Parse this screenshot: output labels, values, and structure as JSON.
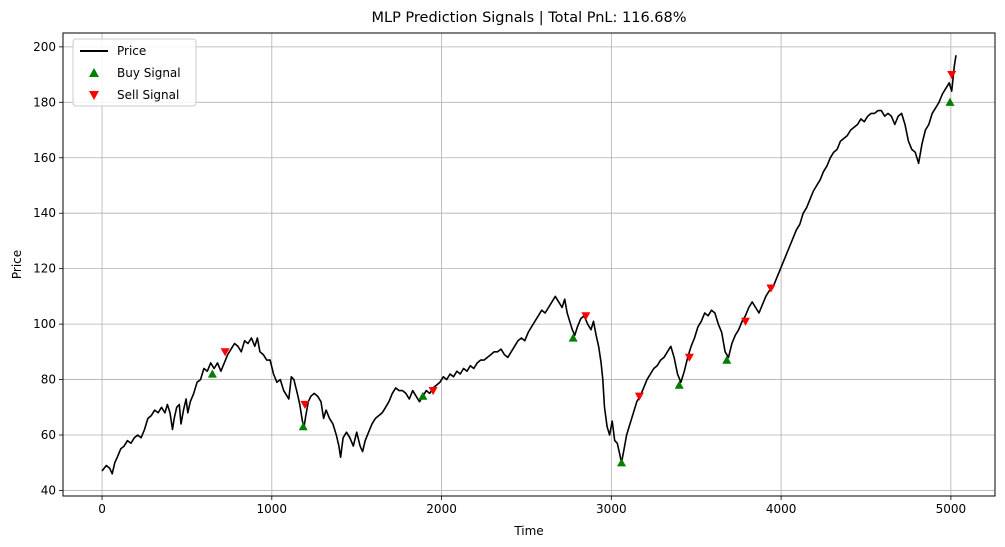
{
  "chart_data": {
    "type": "line",
    "title": "MLP Prediction Signals | Total PnL: 116.68%",
    "xlabel": "Time",
    "ylabel": "Price",
    "xlim": [
      -230,
      5260
    ],
    "ylim": [
      38,
      205
    ],
    "x_ticks": [
      0,
      1000,
      2000,
      3000,
      4000,
      5000
    ],
    "y_ticks": [
      40,
      60,
      80,
      100,
      120,
      140,
      160,
      180,
      200
    ],
    "grid": true,
    "legend_position": "top-left",
    "series": [
      {
        "name": "Price",
        "kind": "line",
        "color": "#000000",
        "points": [
          [
            0,
            47
          ],
          [
            25,
            49
          ],
          [
            45,
            48
          ],
          [
            60,
            46
          ],
          [
            75,
            50
          ],
          [
            90,
            52
          ],
          [
            110,
            55
          ],
          [
            130,
            56
          ],
          [
            150,
            58
          ],
          [
            170,
            57
          ],
          [
            190,
            59
          ],
          [
            210,
            60
          ],
          [
            230,
            59
          ],
          [
            250,
            62
          ],
          [
            270,
            66
          ],
          [
            290,
            67
          ],
          [
            310,
            69
          ],
          [
            330,
            68
          ],
          [
            350,
            70
          ],
          [
            370,
            68
          ],
          [
            385,
            71
          ],
          [
            400,
            68
          ],
          [
            415,
            62
          ],
          [
            425,
            66
          ],
          [
            440,
            70
          ],
          [
            455,
            71
          ],
          [
            465,
            64
          ],
          [
            480,
            69
          ],
          [
            495,
            73
          ],
          [
            505,
            68
          ],
          [
            520,
            72
          ],
          [
            540,
            75
          ],
          [
            560,
            79
          ],
          [
            580,
            80
          ],
          [
            600,
            84
          ],
          [
            620,
            83
          ],
          [
            640,
            86
          ],
          [
            660,
            84
          ],
          [
            680,
            86
          ],
          [
            700,
            83
          ],
          [
            720,
            86
          ],
          [
            740,
            89
          ],
          [
            760,
            91
          ],
          [
            780,
            93
          ],
          [
            800,
            92
          ],
          [
            820,
            90
          ],
          [
            840,
            94
          ],
          [
            860,
            93
          ],
          [
            880,
            95
          ],
          [
            900,
            92
          ],
          [
            915,
            95
          ],
          [
            930,
            90
          ],
          [
            950,
            89
          ],
          [
            970,
            87
          ],
          [
            990,
            87
          ],
          [
            1010,
            82
          ],
          [
            1030,
            79
          ],
          [
            1050,
            80
          ],
          [
            1070,
            76
          ],
          [
            1090,
            74
          ],
          [
            1100,
            73
          ],
          [
            1115,
            81
          ],
          [
            1130,
            80
          ],
          [
            1150,
            75
          ],
          [
            1165,
            71
          ],
          [
            1180,
            65
          ],
          [
            1190,
            63
          ],
          [
            1200,
            67
          ],
          [
            1215,
            72
          ],
          [
            1230,
            74
          ],
          [
            1250,
            75
          ],
          [
            1270,
            74
          ],
          [
            1290,
            72
          ],
          [
            1305,
            66
          ],
          [
            1320,
            69
          ],
          [
            1340,
            66
          ],
          [
            1360,
            64
          ],
          [
            1380,
            60
          ],
          [
            1395,
            56
          ],
          [
            1405,
            52
          ],
          [
            1420,
            59
          ],
          [
            1440,
            61
          ],
          [
            1460,
            59
          ],
          [
            1480,
            56
          ],
          [
            1500,
            61
          ],
          [
            1520,
            56
          ],
          [
            1535,
            54
          ],
          [
            1550,
            58
          ],
          [
            1570,
            61
          ],
          [
            1590,
            64
          ],
          [
            1610,
            66
          ],
          [
            1630,
            67
          ],
          [
            1650,
            68
          ],
          [
            1670,
            70
          ],
          [
            1690,
            72
          ],
          [
            1710,
            75
          ],
          [
            1730,
            77
          ],
          [
            1750,
            76
          ],
          [
            1770,
            76
          ],
          [
            1790,
            75
          ],
          [
            1810,
            73
          ],
          [
            1830,
            76
          ],
          [
            1850,
            74
          ],
          [
            1870,
            72
          ],
          [
            1890,
            74
          ],
          [
            1910,
            76
          ],
          [
            1930,
            75
          ],
          [
            1950,
            77
          ],
          [
            1970,
            78
          ],
          [
            1990,
            79
          ],
          [
            2010,
            81
          ],
          [
            2030,
            80
          ],
          [
            2050,
            82
          ],
          [
            2070,
            81
          ],
          [
            2090,
            83
          ],
          [
            2110,
            82
          ],
          [
            2130,
            84
          ],
          [
            2150,
            83
          ],
          [
            2170,
            85
          ],
          [
            2190,
            84
          ],
          [
            2210,
            86
          ],
          [
            2230,
            87
          ],
          [
            2250,
            87
          ],
          [
            2270,
            88
          ],
          [
            2290,
            89
          ],
          [
            2310,
            90
          ],
          [
            2330,
            90
          ],
          [
            2350,
            91
          ],
          [
            2370,
            89
          ],
          [
            2390,
            88
          ],
          [
            2410,
            90
          ],
          [
            2430,
            92
          ],
          [
            2450,
            94
          ],
          [
            2470,
            95
          ],
          [
            2490,
            94
          ],
          [
            2510,
            97
          ],
          [
            2530,
            99
          ],
          [
            2550,
            101
          ],
          [
            2570,
            103
          ],
          [
            2590,
            105
          ],
          [
            2610,
            104
          ],
          [
            2630,
            106
          ],
          [
            2650,
            108
          ],
          [
            2670,
            110
          ],
          [
            2690,
            108
          ],
          [
            2710,
            106
          ],
          [
            2725,
            109
          ],
          [
            2740,
            104
          ],
          [
            2755,
            101
          ],
          [
            2770,
            98
          ],
          [
            2785,
            96
          ],
          [
            2800,
            99
          ],
          [
            2820,
            102
          ],
          [
            2840,
            103
          ],
          [
            2860,
            100
          ],
          [
            2880,
            98
          ],
          [
            2895,
            101
          ],
          [
            2910,
            96
          ],
          [
            2925,
            92
          ],
          [
            2940,
            86
          ],
          [
            2950,
            80
          ],
          [
            2960,
            70
          ],
          [
            2975,
            63
          ],
          [
            2990,
            60
          ],
          [
            3005,
            65
          ],
          [
            3020,
            58
          ],
          [
            3035,
            57
          ],
          [
            3050,
            53
          ],
          [
            3060,
            50
          ],
          [
            3075,
            55
          ],
          [
            3090,
            60
          ],
          [
            3110,
            64
          ],
          [
            3130,
            68
          ],
          [
            3150,
            72
          ],
          [
            3170,
            74
          ],
          [
            3190,
            77
          ],
          [
            3210,
            80
          ],
          [
            3230,
            82
          ],
          [
            3250,
            84
          ],
          [
            3270,
            85
          ],
          [
            3290,
            87
          ],
          [
            3310,
            88
          ],
          [
            3330,
            90
          ],
          [
            3350,
            92
          ],
          [
            3370,
            88
          ],
          [
            3390,
            82
          ],
          [
            3410,
            79
          ],
          [
            3430,
            83
          ],
          [
            3450,
            88
          ],
          [
            3470,
            92
          ],
          [
            3490,
            95
          ],
          [
            3510,
            99
          ],
          [
            3530,
            101
          ],
          [
            3550,
            104
          ],
          [
            3570,
            103
          ],
          [
            3590,
            105
          ],
          [
            3610,
            104
          ],
          [
            3630,
            100
          ],
          [
            3650,
            97
          ],
          [
            3670,
            90
          ],
          [
            3690,
            88
          ],
          [
            3710,
            93
          ],
          [
            3730,
            96
          ],
          [
            3750,
            98
          ],
          [
            3770,
            101
          ],
          [
            3790,
            103
          ],
          [
            3810,
            106
          ],
          [
            3830,
            108
          ],
          [
            3850,
            106
          ],
          [
            3870,
            104
          ],
          [
            3890,
            107
          ],
          [
            3910,
            110
          ],
          [
            3930,
            112
          ],
          [
            3950,
            113
          ],
          [
            3970,
            116
          ],
          [
            3990,
            119
          ],
          [
            4010,
            122
          ],
          [
            4030,
            125
          ],
          [
            4050,
            128
          ],
          [
            4070,
            131
          ],
          [
            4090,
            134
          ],
          [
            4110,
            136
          ],
          [
            4130,
            140
          ],
          [
            4150,
            142
          ],
          [
            4170,
            145
          ],
          [
            4190,
            148
          ],
          [
            4210,
            150
          ],
          [
            4230,
            152
          ],
          [
            4250,
            155
          ],
          [
            4270,
            157
          ],
          [
            4290,
            160
          ],
          [
            4310,
            162
          ],
          [
            4330,
            163
          ],
          [
            4350,
            166
          ],
          [
            4370,
            167
          ],
          [
            4390,
            168
          ],
          [
            4410,
            170
          ],
          [
            4430,
            171
          ],
          [
            4450,
            172
          ],
          [
            4470,
            174
          ],
          [
            4490,
            173
          ],
          [
            4510,
            175
          ],
          [
            4530,
            176
          ],
          [
            4550,
            176
          ],
          [
            4570,
            177
          ],
          [
            4590,
            177
          ],
          [
            4610,
            175
          ],
          [
            4630,
            176
          ],
          [
            4650,
            175
          ],
          [
            4670,
            172
          ],
          [
            4690,
            175
          ],
          [
            4710,
            176
          ],
          [
            4730,
            172
          ],
          [
            4750,
            166
          ],
          [
            4770,
            163
          ],
          [
            4790,
            162
          ],
          [
            4810,
            158
          ],
          [
            4830,
            165
          ],
          [
            4850,
            170
          ],
          [
            4870,
            172
          ],
          [
            4890,
            176
          ],
          [
            4910,
            178
          ],
          [
            4930,
            180
          ],
          [
            4950,
            183
          ],
          [
            4970,
            185
          ],
          [
            4990,
            187
          ],
          [
            5005,
            184
          ],
          [
            5020,
            193
          ],
          [
            5030,
            197
          ]
        ]
      },
      {
        "name": "Buy Signal",
        "kind": "scatter",
        "marker": "triangle-up",
        "color": "#008000",
        "points": [
          [
            650,
            82
          ],
          [
            1185,
            63
          ],
          [
            1890,
            74
          ],
          [
            2775,
            95
          ],
          [
            3060,
            50
          ],
          [
            3400,
            78
          ],
          [
            3680,
            87
          ],
          [
            4995,
            180
          ]
        ]
      },
      {
        "name": "Sell Signal",
        "kind": "scatter",
        "marker": "triangle-down",
        "color": "#ff0000",
        "points": [
          [
            725,
            90
          ],
          [
            1195,
            71
          ],
          [
            1950,
            76
          ],
          [
            2850,
            103
          ],
          [
            3165,
            74
          ],
          [
            3460,
            88
          ],
          [
            3790,
            101
          ],
          [
            3940,
            113
          ],
          [
            5005,
            190
          ]
        ]
      }
    ]
  }
}
